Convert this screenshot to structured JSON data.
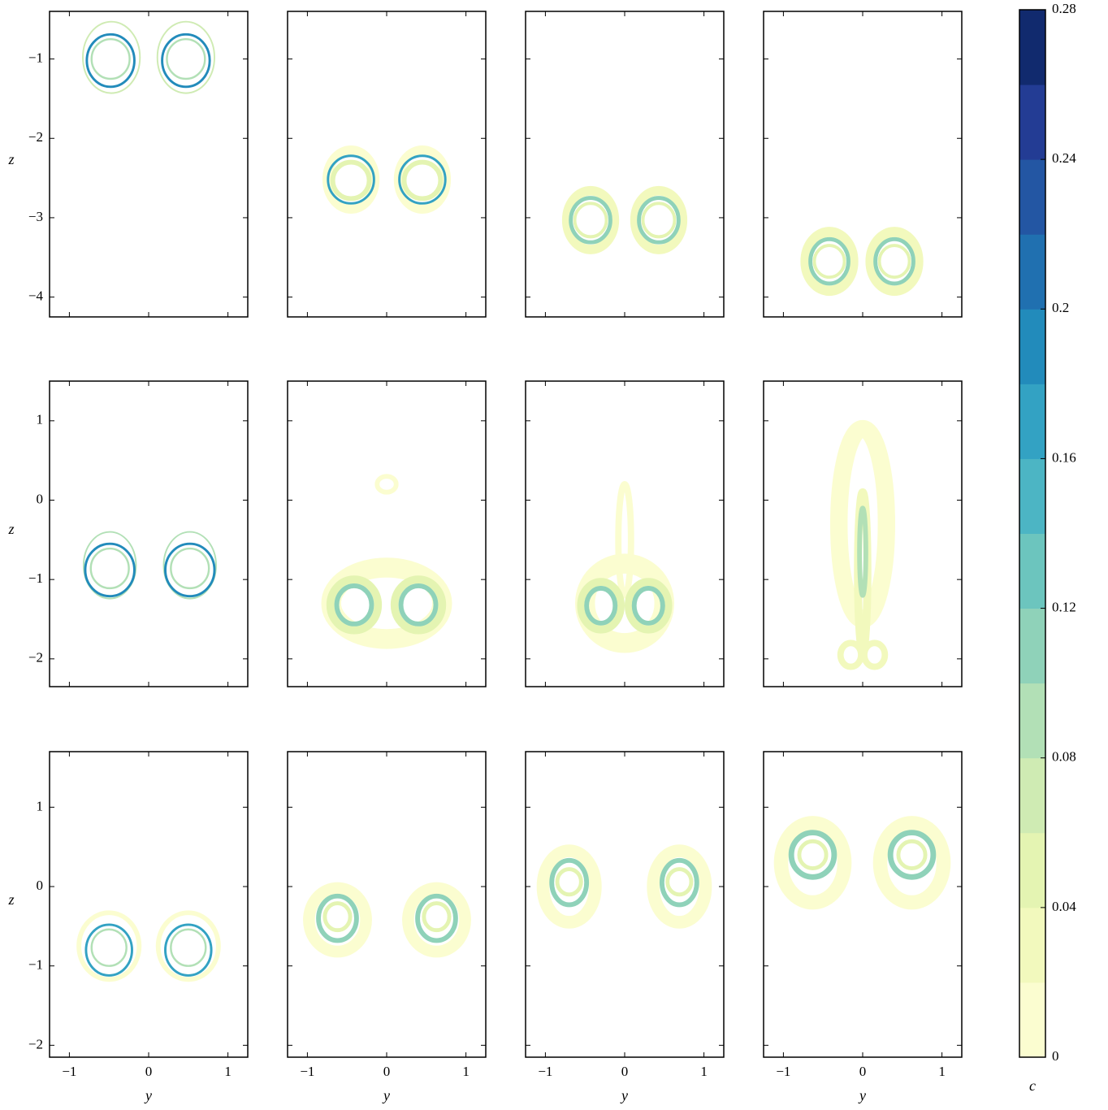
{
  "chart_data": [
    {
      "type": "contour",
      "xlim": [
        -1.25,
        1.25
      ],
      "ylim": [
        -4.25,
        -0.4
      ],
      "xticks": [
        {
          "value": -1,
          "label": "−1"
        },
        0,
        1
      ],
      "yticks": [
        {
          "value": -4,
          "label": "−4"
        },
        {
          "value": -3,
          "label": "−3"
        },
        {
          "value": -2,
          "label": "−2"
        },
        {
          "value": -1,
          "label": "−1"
        }
      ],
      "show_xticklabels": false,
      "show_yticklabels": true,
      "ylabel": "z",
      "rings": [
        {
          "y": -0.47,
          "z": -0.98,
          "rx": 0.36,
          "ry": 0.45,
          "c": 0.07,
          "w": 0.02
        },
        {
          "y": 0.47,
          "z": -0.98,
          "rx": 0.36,
          "ry": 0.45,
          "c": 0.07,
          "w": 0.02
        },
        {
          "y": -0.48,
          "z": -1.02,
          "rx": 0.3,
          "ry": 0.33,
          "c": 0.19,
          "w": 0.03
        },
        {
          "y": 0.47,
          "z": -1.02,
          "rx": 0.3,
          "ry": 0.33,
          "c": 0.19,
          "w": 0.03
        },
        {
          "y": -0.48,
          "z": -1.0,
          "rx": 0.24,
          "ry": 0.25,
          "c": 0.09,
          "w": 0.025
        },
        {
          "y": 0.47,
          "z": -1.0,
          "rx": 0.24,
          "ry": 0.25,
          "c": 0.09,
          "w": 0.025
        }
      ]
    },
    {
      "type": "contour",
      "xlim": [
        -1.25,
        1.25
      ],
      "ylim": [
        -4.25,
        -0.4
      ],
      "xticks": [
        {
          "value": -1,
          "label": "−1"
        },
        0,
        1
      ],
      "yticks": [
        {
          "value": -4,
          "label": "−4"
        },
        {
          "value": -3,
          "label": "−3"
        },
        {
          "value": -2,
          "label": "−2"
        },
        {
          "value": -1,
          "label": "−1"
        }
      ],
      "show_xticklabels": false,
      "show_yticklabels": false,
      "rings": [
        {
          "y": -0.45,
          "z": -2.52,
          "rx": 0.3,
          "ry": 0.37,
          "c": 0.01,
          "w": 0.12
        },
        {
          "y": 0.45,
          "z": -2.52,
          "rx": 0.3,
          "ry": 0.37,
          "c": 0.01,
          "w": 0.12
        },
        {
          "y": -0.45,
          "z": -2.52,
          "rx": 0.29,
          "ry": 0.3,
          "c": 0.17,
          "w": 0.03
        },
        {
          "y": 0.45,
          "z": -2.52,
          "rx": 0.29,
          "ry": 0.3,
          "c": 0.17,
          "w": 0.03
        },
        {
          "y": -0.45,
          "z": -2.53,
          "rx": 0.23,
          "ry": 0.23,
          "c": 0.05,
          "w": 0.06
        },
        {
          "y": 0.45,
          "z": -2.53,
          "rx": 0.23,
          "ry": 0.23,
          "c": 0.05,
          "w": 0.06
        }
      ]
    },
    {
      "type": "contour",
      "xlim": [
        -1.25,
        1.25
      ],
      "ylim": [
        -4.25,
        -0.4
      ],
      "xticks": [
        {
          "value": -1,
          "label": "−1"
        },
        0,
        1
      ],
      "yticks": [
        {
          "value": -4,
          "label": "−4"
        },
        {
          "value": -3,
          "label": "−3"
        },
        {
          "value": -2,
          "label": "−2"
        },
        {
          "value": -1,
          "label": "−1"
        }
      ],
      "show_xticklabels": false,
      "show_yticklabels": false,
      "rings": [
        {
          "y": -0.43,
          "z": -3.03,
          "rx": 0.3,
          "ry": 0.37,
          "c": 0.03,
          "w": 0.12
        },
        {
          "y": 0.43,
          "z": -3.03,
          "rx": 0.3,
          "ry": 0.37,
          "c": 0.03,
          "w": 0.12
        },
        {
          "y": -0.43,
          "z": -3.03,
          "rx": 0.25,
          "ry": 0.28,
          "c": 0.11,
          "w": 0.05
        },
        {
          "y": 0.43,
          "z": -3.03,
          "rx": 0.25,
          "ry": 0.28,
          "c": 0.11,
          "w": 0.05
        },
        {
          "y": -0.43,
          "z": -3.03,
          "rx": 0.2,
          "ry": 0.21,
          "c": 0.05,
          "w": 0.04
        },
        {
          "y": 0.43,
          "z": -3.03,
          "rx": 0.2,
          "ry": 0.21,
          "c": 0.05,
          "w": 0.04
        }
      ]
    },
    {
      "type": "contour",
      "xlim": [
        -1.25,
        1.25
      ],
      "ylim": [
        -4.25,
        -0.4
      ],
      "xticks": [
        {
          "value": -1,
          "label": "−1"
        },
        0,
        1
      ],
      "yticks": [
        {
          "value": -4,
          "label": "−4"
        },
        {
          "value": -3,
          "label": "−3"
        },
        {
          "value": -2,
          "label": "−2"
        },
        {
          "value": -1,
          "label": "−1"
        }
      ],
      "show_xticklabels": false,
      "show_yticklabels": false,
      "rings": [
        {
          "y": -0.42,
          "z": -3.55,
          "rx": 0.3,
          "ry": 0.37,
          "c": 0.03,
          "w": 0.13
        },
        {
          "y": 0.4,
          "z": -3.55,
          "rx": 0.3,
          "ry": 0.37,
          "c": 0.03,
          "w": 0.13
        },
        {
          "y": -0.42,
          "z": -3.55,
          "rx": 0.24,
          "ry": 0.28,
          "c": 0.11,
          "w": 0.05
        },
        {
          "y": 0.4,
          "z": -3.55,
          "rx": 0.24,
          "ry": 0.28,
          "c": 0.11,
          "w": 0.05
        },
        {
          "y": -0.42,
          "z": -3.55,
          "rx": 0.19,
          "ry": 0.2,
          "c": 0.05,
          "w": 0.04
        },
        {
          "y": 0.4,
          "z": -3.55,
          "rx": 0.19,
          "ry": 0.2,
          "c": 0.05,
          "w": 0.04
        }
      ]
    },
    {
      "type": "contour",
      "xlim": [
        -1.25,
        1.25
      ],
      "ylim": [
        -2.35,
        1.5
      ],
      "xticks": [
        {
          "value": -1,
          "label": "−1"
        },
        0,
        1
      ],
      "yticks": [
        {
          "value": -2,
          "label": "−2"
        },
        {
          "value": -1,
          "label": "−1"
        },
        0,
        1
      ],
      "show_xticklabels": false,
      "show_yticklabels": true,
      "ylabel": "z",
      "rings": [
        {
          "y": -0.49,
          "z": -0.82,
          "rx": 0.33,
          "ry": 0.42,
          "c": 0.09,
          "w": 0.02
        },
        {
          "y": 0.52,
          "z": -0.82,
          "rx": 0.33,
          "ry": 0.42,
          "c": 0.09,
          "w": 0.02
        },
        {
          "y": -0.49,
          "z": -0.88,
          "rx": 0.31,
          "ry": 0.33,
          "c": 0.19,
          "w": 0.03
        },
        {
          "y": 0.52,
          "z": -0.88,
          "rx": 0.31,
          "ry": 0.33,
          "c": 0.19,
          "w": 0.03
        },
        {
          "y": -0.49,
          "z": -0.86,
          "rx": 0.24,
          "ry": 0.25,
          "c": 0.09,
          "w": 0.025
        },
        {
          "y": 0.52,
          "z": -0.86,
          "rx": 0.24,
          "ry": 0.25,
          "c": 0.09,
          "w": 0.025
        }
      ]
    },
    {
      "type": "contour",
      "xlim": [
        -1.25,
        1.25
      ],
      "ylim": [
        -2.35,
        1.5
      ],
      "xticks": [
        {
          "value": -1,
          "label": "−1"
        },
        0,
        1
      ],
      "yticks": [
        {
          "value": -2,
          "label": "−2"
        },
        {
          "value": -1,
          "label": "−1"
        },
        0,
        1
      ],
      "show_xticklabels": false,
      "show_yticklabels": false,
      "rings": [
        {
          "y": 0,
          "z": -1.3,
          "rx": 0.7,
          "ry": 0.45,
          "c": 0.01,
          "w": 0.25
        },
        {
          "y": 0,
          "z": 0.2,
          "rx": 0.12,
          "ry": 0.1,
          "c": 0.01,
          "w": 0.06
        },
        {
          "y": -0.41,
          "z": -1.32,
          "rx": 0.3,
          "ry": 0.32,
          "c": 0.05,
          "w": 0.1
        },
        {
          "y": 0.4,
          "z": -1.32,
          "rx": 0.3,
          "ry": 0.32,
          "c": 0.05,
          "w": 0.1
        },
        {
          "y": -0.41,
          "z": -1.32,
          "rx": 0.22,
          "ry": 0.24,
          "c": 0.11,
          "w": 0.06
        },
        {
          "y": 0.4,
          "z": -1.32,
          "rx": 0.22,
          "ry": 0.24,
          "c": 0.11,
          "w": 0.06
        }
      ]
    },
    {
      "type": "contour",
      "xlim": [
        -1.25,
        1.25
      ],
      "ylim": [
        -2.35,
        1.5
      ],
      "xticks": [
        {
          "value": -1,
          "label": "−1"
        },
        0,
        1
      ],
      "yticks": [
        {
          "value": -2,
          "label": "−2"
        },
        {
          "value": -1,
          "label": "−1"
        },
        0,
        1
      ],
      "show_xticklabels": false,
      "show_yticklabels": false,
      "rings": [
        {
          "y": 0,
          "z": -0.5,
          "rx": 0.08,
          "ry": 0.7,
          "c": 0.01,
          "w": 0.08
        },
        {
          "y": 0,
          "z": -1.3,
          "rx": 0.5,
          "ry": 0.5,
          "c": 0.01,
          "w": 0.25
        },
        {
          "y": -0.3,
          "z": -1.33,
          "rx": 0.25,
          "ry": 0.3,
          "c": 0.05,
          "w": 0.1
        },
        {
          "y": 0.3,
          "z": -1.33,
          "rx": 0.25,
          "ry": 0.3,
          "c": 0.05,
          "w": 0.1
        },
        {
          "y": -0.3,
          "z": -1.33,
          "rx": 0.18,
          "ry": 0.22,
          "c": 0.11,
          "w": 0.06
        },
        {
          "y": 0.3,
          "z": -1.33,
          "rx": 0.18,
          "ry": 0.22,
          "c": 0.11,
          "w": 0.06
        }
      ]
    },
    {
      "type": "contour",
      "xlim": [
        -1.25,
        1.25
      ],
      "ylim": [
        -2.35,
        1.5
      ],
      "xticks": [
        {
          "value": -1,
          "label": "−1"
        },
        0,
        1
      ],
      "yticks": [
        {
          "value": -2,
          "label": "−2"
        },
        {
          "value": -1,
          "label": "−1"
        },
        0,
        1
      ],
      "show_xticklabels": false,
      "show_yticklabels": false,
      "rings": [
        {
          "y": 0,
          "z": -0.3,
          "rx": 0.3,
          "ry": 1.2,
          "c": 0.01,
          "w": 0.22
        },
        {
          "y": 0,
          "z": -0.9,
          "rx": 0.06,
          "ry": 1.0,
          "c": 0.03,
          "w": 0.1
        },
        {
          "y": 0,
          "z": -0.65,
          "rx": 0.04,
          "ry": 0.55,
          "c": 0.09,
          "w": 0.06
        },
        {
          "y": -0.15,
          "z": -1.95,
          "rx": 0.13,
          "ry": 0.15,
          "c": 0.03,
          "w": 0.08
        },
        {
          "y": 0.15,
          "z": -1.95,
          "rx": 0.13,
          "ry": 0.15,
          "c": 0.03,
          "w": 0.08
        }
      ]
    },
    {
      "type": "contour",
      "xlim": [
        -1.25,
        1.25
      ],
      "ylim": [
        -2.15,
        1.7
      ],
      "xticks": [
        {
          "value": -1,
          "label": "−1"
        },
        0,
        1
      ],
      "yticks": [
        {
          "value": -2,
          "label": "−2"
        },
        {
          "value": -1,
          "label": "−1"
        },
        0,
        1
      ],
      "show_xticklabels": true,
      "show_yticklabels": true,
      "xlabel": "y",
      "ylabel": "z",
      "rings": [
        {
          "y": -0.5,
          "z": -0.75,
          "rx": 0.38,
          "ry": 0.42,
          "c": 0.01,
          "w": 0.06
        },
        {
          "y": 0.5,
          "z": -0.75,
          "rx": 0.38,
          "ry": 0.42,
          "c": 0.01,
          "w": 0.06
        },
        {
          "y": -0.5,
          "z": -0.8,
          "rx": 0.29,
          "ry": 0.32,
          "c": 0.17,
          "w": 0.03
        },
        {
          "y": 0.5,
          "z": -0.8,
          "rx": 0.29,
          "ry": 0.32,
          "c": 0.17,
          "w": 0.03
        },
        {
          "y": -0.5,
          "z": -0.77,
          "rx": 0.22,
          "ry": 0.23,
          "c": 0.09,
          "w": 0.025
        },
        {
          "y": 0.5,
          "z": -0.77,
          "rx": 0.22,
          "ry": 0.23,
          "c": 0.09,
          "w": 0.025
        }
      ]
    },
    {
      "type": "contour",
      "xlim": [
        -1.25,
        1.25
      ],
      "ylim": [
        -2.15,
        1.7
      ],
      "xticks": [
        {
          "value": -1,
          "label": "−1"
        },
        0,
        1
      ],
      "yticks": [
        {
          "value": -2,
          "label": "−2"
        },
        {
          "value": -1,
          "label": "−1"
        },
        0,
        1
      ],
      "show_xticklabels": true,
      "show_yticklabels": false,
      "xlabel": "y",
      "rings": [
        {
          "y": -0.62,
          "z": -0.42,
          "rx": 0.36,
          "ry": 0.4,
          "c": 0.01,
          "w": 0.15
        },
        {
          "y": 0.63,
          "z": -0.42,
          "rx": 0.36,
          "ry": 0.4,
          "c": 0.01,
          "w": 0.15
        },
        {
          "y": -0.62,
          "z": -0.4,
          "rx": 0.24,
          "ry": 0.28,
          "c": 0.11,
          "w": 0.06
        },
        {
          "y": 0.63,
          "z": -0.4,
          "rx": 0.24,
          "ry": 0.28,
          "c": 0.11,
          "w": 0.06
        },
        {
          "y": -0.62,
          "z": -0.38,
          "rx": 0.16,
          "ry": 0.17,
          "c": 0.05,
          "w": 0.05
        },
        {
          "y": 0.63,
          "z": -0.38,
          "rx": 0.16,
          "ry": 0.17,
          "c": 0.05,
          "w": 0.05
        }
      ]
    },
    {
      "type": "contour",
      "xlim": [
        -1.25,
        1.25
      ],
      "ylim": [
        -2.15,
        1.7
      ],
      "xticks": [
        {
          "value": -1,
          "label": "−1"
        },
        0,
        1
      ],
      "yticks": [
        {
          "value": -2,
          "label": "−2"
        },
        {
          "value": -1,
          "label": "−1"
        },
        0,
        1
      ],
      "show_xticklabels": true,
      "show_yticklabels": false,
      "xlabel": "y",
      "rings": [
        {
          "y": -0.7,
          "z": 0.0,
          "rx": 0.33,
          "ry": 0.45,
          "c": 0.01,
          "w": 0.16
        },
        {
          "y": 0.69,
          "z": 0.0,
          "rx": 0.33,
          "ry": 0.45,
          "c": 0.01,
          "w": 0.16
        },
        {
          "y": -0.7,
          "z": 0.05,
          "rx": 0.22,
          "ry": 0.28,
          "c": 0.11,
          "w": 0.06
        },
        {
          "y": 0.69,
          "z": 0.05,
          "rx": 0.22,
          "ry": 0.28,
          "c": 0.11,
          "w": 0.06
        },
        {
          "y": -0.7,
          "z": 0.06,
          "rx": 0.15,
          "ry": 0.16,
          "c": 0.05,
          "w": 0.05
        },
        {
          "y": 0.69,
          "z": 0.06,
          "rx": 0.15,
          "ry": 0.16,
          "c": 0.05,
          "w": 0.05
        }
      ]
    },
    {
      "type": "contour",
      "xlim": [
        -1.25,
        1.25
      ],
      "ylim": [
        -2.15,
        1.7
      ],
      "xticks": [
        {
          "value": -1,
          "label": "−1"
        },
        0,
        1
      ],
      "yticks": [
        {
          "value": -2,
          "label": "−2"
        },
        {
          "value": -1,
          "label": "−1"
        },
        0,
        1
      ],
      "show_xticklabels": true,
      "show_yticklabels": false,
      "xlabel": "y",
      "rings": [
        {
          "y": -0.63,
          "z": 0.3,
          "rx": 0.4,
          "ry": 0.5,
          "c": 0.01,
          "w": 0.18
        },
        {
          "y": 0.62,
          "z": 0.3,
          "rx": 0.4,
          "ry": 0.5,
          "c": 0.01,
          "w": 0.18
        },
        {
          "y": -0.63,
          "z": 0.4,
          "rx": 0.27,
          "ry": 0.28,
          "c": 0.11,
          "w": 0.07
        },
        {
          "y": 0.62,
          "z": 0.4,
          "rx": 0.27,
          "ry": 0.28,
          "c": 0.11,
          "w": 0.07
        },
        {
          "y": -0.63,
          "z": 0.4,
          "rx": 0.17,
          "ry": 0.17,
          "c": 0.05,
          "w": 0.05
        },
        {
          "y": 0.62,
          "z": 0.4,
          "rx": 0.17,
          "ry": 0.17,
          "c": 0.05,
          "w": 0.05
        }
      ]
    },
    {
      "type": "colorbar",
      "label": "c",
      "ylim": [
        0,
        0.28
      ],
      "levels": [
        0,
        0.02,
        0.04,
        0.06,
        0.08,
        0.1,
        0.12,
        0.14,
        0.16,
        0.18,
        0.2,
        0.22,
        0.24,
        0.26,
        0.28
      ],
      "colors": [
        "#fbfdd0",
        "#f2f9bd",
        "#e4f4b2",
        "#cfebb3",
        "#b2e0b6",
        "#8fd2b9",
        "#6cc5be",
        "#4cb5c4",
        "#33a2c3",
        "#228bbb",
        "#2070b0",
        "#2356a3",
        "#233c94",
        "#112a6e"
      ],
      "yticks": [
        0,
        0.04,
        0.08,
        0.12,
        0.16,
        0.2,
        0.24,
        0.28
      ]
    }
  ]
}
